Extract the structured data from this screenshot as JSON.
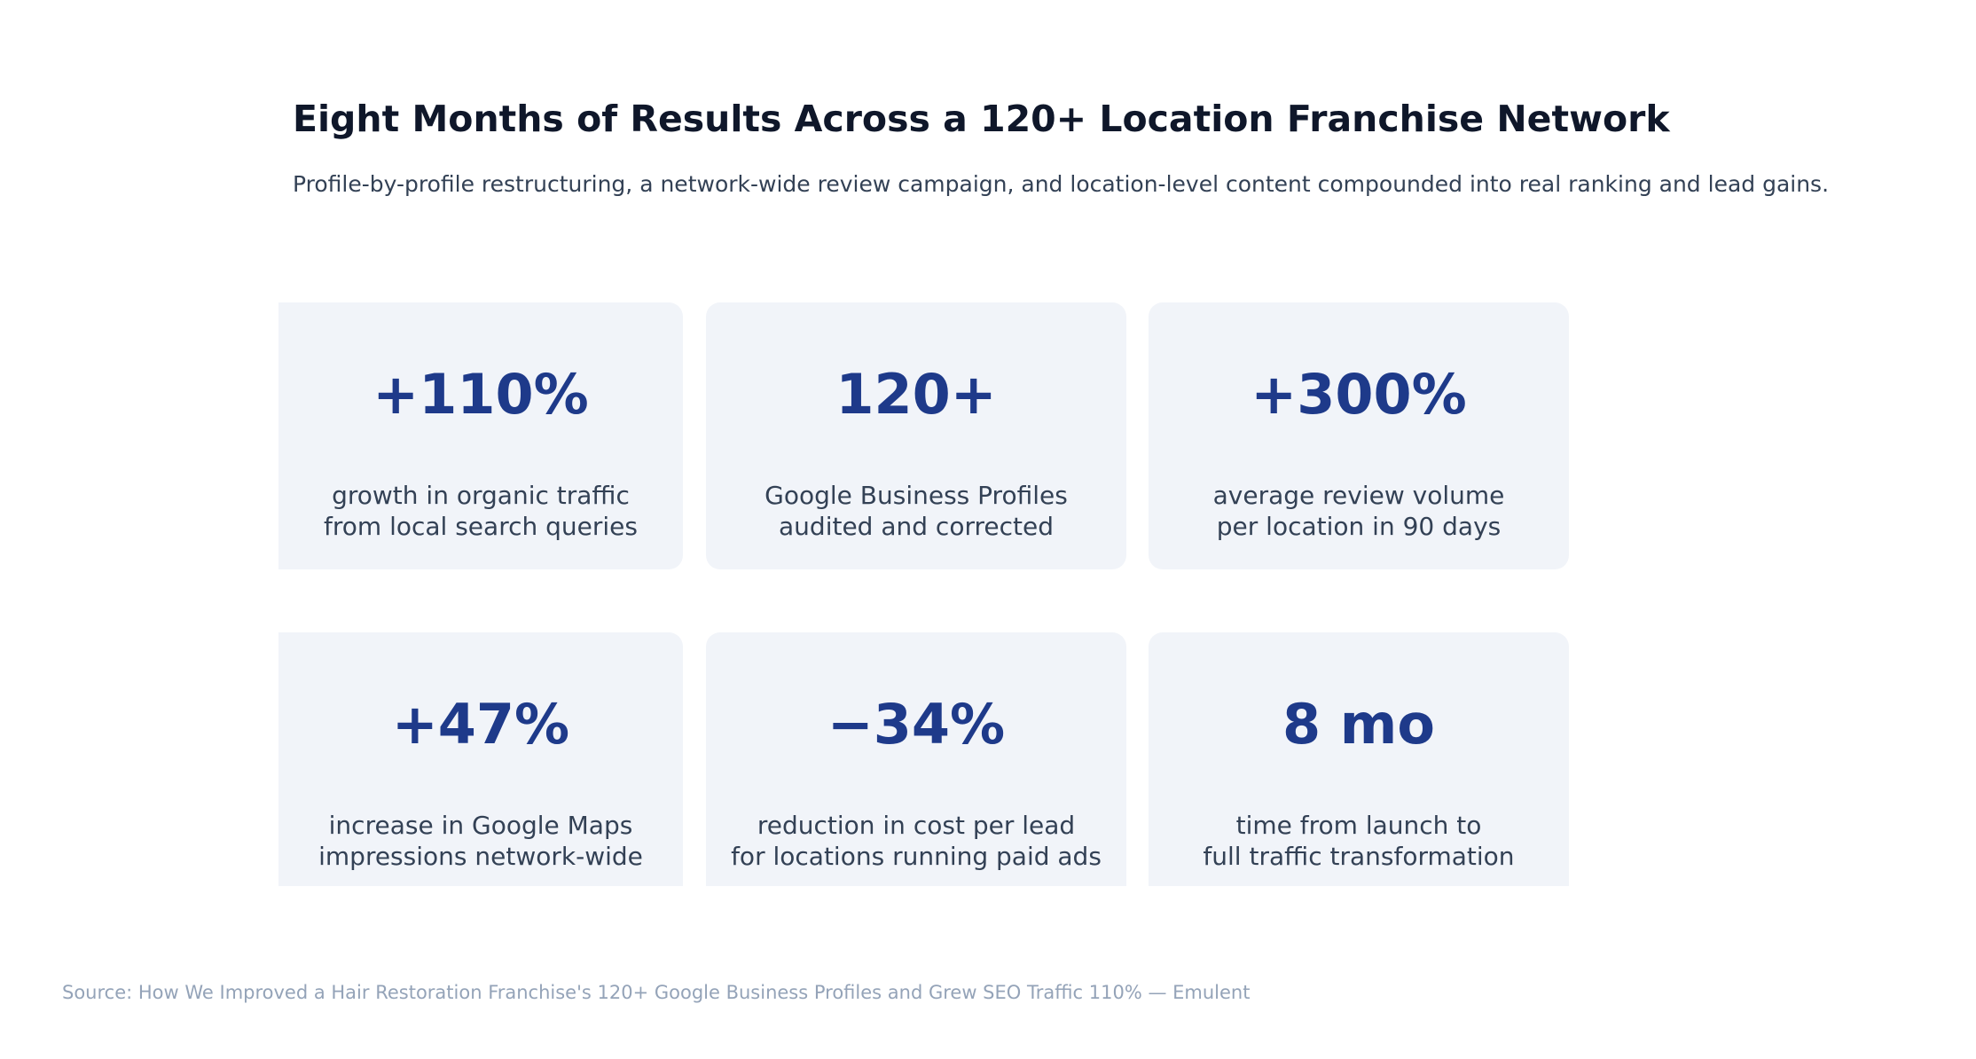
{
  "header": {
    "title": "Eight Months of Results Across a 120+ Location Franchise Network",
    "subtitle": "Profile-by-profile restructuring, a network-wide review campaign, and location-level content compounded into real ranking and lead gains."
  },
  "cards": [
    {
      "stat": "+110%",
      "line1": "growth in organic traffic",
      "line2": "from local search queries"
    },
    {
      "stat": "120+",
      "line1": "Google Business Profiles",
      "line2": "audited and corrected"
    },
    {
      "stat": "+300%",
      "line1": "average review volume",
      "line2": "per location in 90 days"
    },
    {
      "stat": "+47%",
      "line1": "increase in Google Maps",
      "line2": "impressions network-wide"
    },
    {
      "stat": "−34%",
      "line1": "reduction in cost per lead",
      "line2": "for locations running paid ads"
    },
    {
      "stat": "8 mo",
      "line1": "time from launch to",
      "line2": "full traffic transformation"
    }
  ],
  "footer": {
    "source": "Source: How We Improved a Hair Restoration Franchise's 120+ Google Business Profiles and Grew SEO Traffic 110% — Emulent"
  },
  "colors": {
    "background": "#ffffff",
    "card_background": "#f1f4f9",
    "stat_color": "#1e3a8a",
    "title_color": "#0f172a",
    "text_color": "#334155",
    "muted_color": "#94a3b8"
  }
}
